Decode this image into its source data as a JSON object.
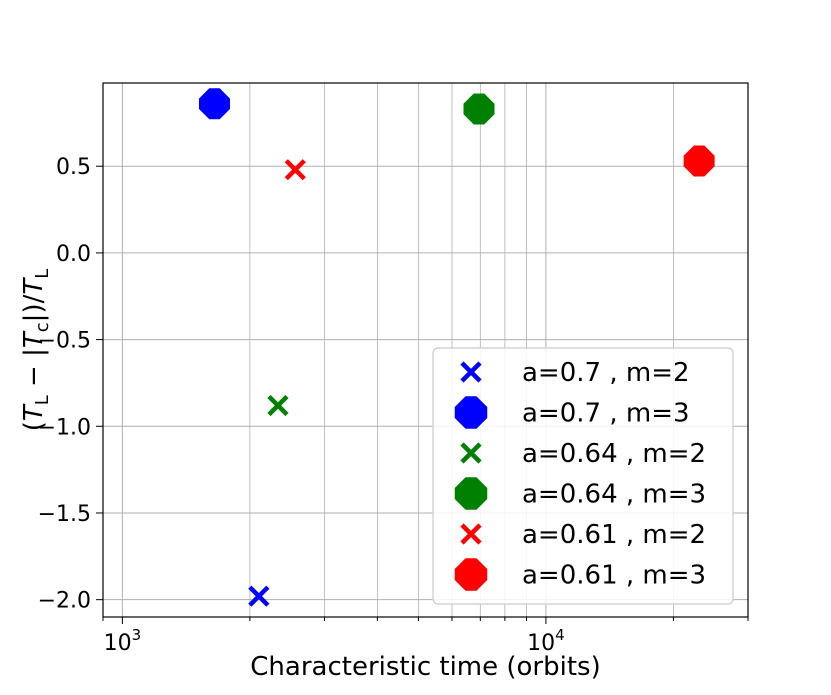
{
  "chart_data": {
    "type": "scatter",
    "title": "",
    "xlabel": "Characteristic time (orbits)",
    "ylabel_parts": {
      "open": "(",
      "TL": "T",
      "L": "L",
      "minus": "−",
      "abs_open": "|",
      "Tc": "T",
      "c": "c",
      "abs_close": "|)/",
      "TL2": "T",
      "L2": "L"
    },
    "xscale": "log",
    "xlim": [
      900,
      30000
    ],
    "ylim": [
      -2.1,
      0.98
    ],
    "grid": true,
    "legend_position": "lower-right",
    "x_tick_labels": [
      {
        "value": 1000,
        "base": "10",
        "exp": "3"
      },
      {
        "value": 10000,
        "base": "10",
        "exp": "4"
      }
    ],
    "y_ticks": [
      0.5,
      0.0,
      -0.5,
      -1.0,
      -1.5,
      -2.0
    ],
    "y_tick_labels": [
      "0.5",
      "0.0",
      "−0.5",
      "−1.0",
      "−1.5",
      "−2.0"
    ],
    "series": [
      {
        "name": "a=0.7 , m=2",
        "marker": "x",
        "color": "#0000ff",
        "x": [
          2100
        ],
        "y": [
          -1.98
        ]
      },
      {
        "name": "a=0.7 , m=3",
        "marker": "diamond",
        "color": "#0000ff",
        "x": [
          1650
        ],
        "y": [
          0.86
        ]
      },
      {
        "name": "a=0.64 , m=2",
        "marker": "x",
        "color": "#008000",
        "x": [
          2330
        ],
        "y": [
          -0.88
        ]
      },
      {
        "name": "a=0.64 , m=3",
        "marker": "diamond",
        "color": "#008000",
        "x": [
          6950
        ],
        "y": [
          0.83
        ]
      },
      {
        "name": "a=0.61 , m=2",
        "marker": "x",
        "color": "#ff0000",
        "x": [
          2560
        ],
        "y": [
          0.48
        ]
      },
      {
        "name": "a=0.61 , m=3",
        "marker": "diamond",
        "color": "#ff0000",
        "x": [
          23000
        ],
        "y": [
          0.53
        ]
      }
    ]
  }
}
